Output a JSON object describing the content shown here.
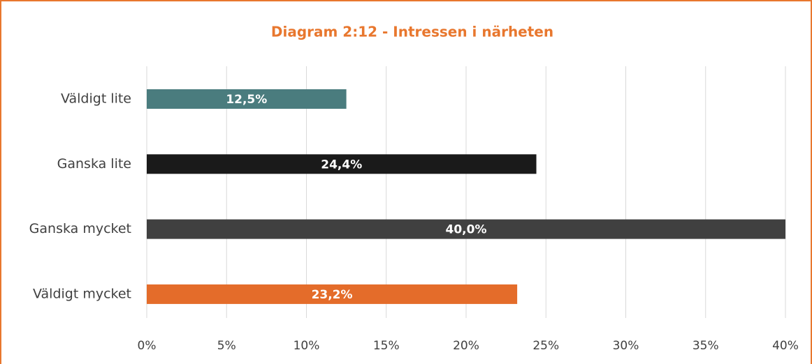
{
  "chart_data": {
    "type": "bar",
    "orientation": "horizontal",
    "title": "Diagram 2:12 - Intressen i närheten",
    "categories": [
      "Väldigt lite",
      "Ganska lite",
      "Ganska mycket",
      "Väldigt mycket"
    ],
    "values": [
      12.5,
      24.4,
      40.0,
      23.2
    ],
    "value_labels": [
      "12,5%",
      "24,4%",
      "40,0%",
      "23,2%"
    ],
    "colors": [
      "#4a7c7e",
      "#1a1a1a",
      "#404040",
      "#e46c2a"
    ],
    "xlim": [
      0,
      40
    ],
    "xticks": [
      {
        "value": 0,
        "label": "0%"
      },
      {
        "value": 5,
        "label": "5%"
      },
      {
        "value": 10,
        "label": "10%"
      },
      {
        "value": 15,
        "label": "15%"
      },
      {
        "value": 20,
        "label": "20%"
      },
      {
        "value": 25,
        "label": "25%"
      },
      {
        "value": 30,
        "label": "30%"
      },
      {
        "value": 35,
        "label": "35%"
      },
      {
        "value": 40,
        "label": "40%"
      }
    ],
    "grid": true
  }
}
